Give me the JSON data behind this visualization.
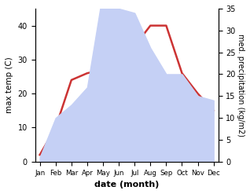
{
  "months": [
    "Jan",
    "Feb",
    "Mar",
    "Apr",
    "May",
    "Jun",
    "Jul",
    "Aug",
    "Sep",
    "Oct",
    "Nov",
    "Dec"
  ],
  "temp": [
    2,
    10,
    24,
    26,
    27,
    33,
    34,
    40,
    40,
    26,
    20,
    15
  ],
  "precip": [
    1,
    10,
    13,
    17,
    39,
    35,
    34,
    26,
    20,
    20,
    15,
    14
  ],
  "temp_color": "#cc3333",
  "precip_fill_color": "#c5d0f5",
  "temp_ylim": [
    0,
    45
  ],
  "precip_ylim": [
    0,
    35
  ],
  "temp_yticks": [
    0,
    10,
    20,
    30,
    40
  ],
  "precip_yticks": [
    0,
    5,
    10,
    15,
    20,
    25,
    30,
    35
  ],
  "ylabel_left": "max temp (C)",
  "ylabel_right": "med. precipitation (kg/m2)",
  "xlabel": "date (month)",
  "background_color": "#ffffff"
}
